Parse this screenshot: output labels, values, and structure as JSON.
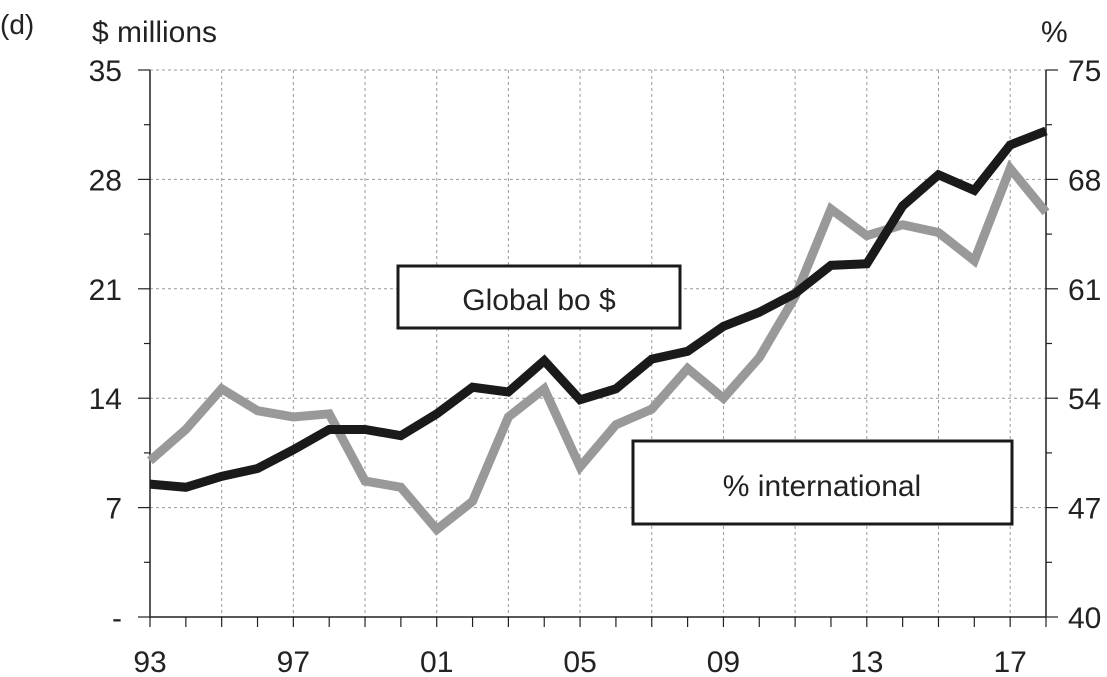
{
  "panel_label": "(d)",
  "chart_data": {
    "type": "line",
    "ylabel_left": "$ millions",
    "ylabel_right": "%",
    "x_tick_labels": [
      "93",
      "97",
      "01",
      "05",
      "09",
      "13",
      "17"
    ],
    "y_left_ticks": [
      "-",
      "7",
      "14",
      "21",
      "28",
      "35"
    ],
    "y_right_ticks": [
      "40",
      "47",
      "54",
      "61",
      "68",
      "75"
    ],
    "ylim_left": [
      0,
      35
    ],
    "ylim_right": [
      40,
      75
    ],
    "xlim": [
      1993,
      2018
    ],
    "grid": true,
    "x": [
      1993,
      1994,
      1995,
      1996,
      1997,
      1998,
      1999,
      2000,
      2001,
      2002,
      2003,
      2004,
      2005,
      2006,
      2007,
      2008,
      2009,
      2010,
      2011,
      2012,
      2013,
      2014,
      2015,
      2016,
      2017,
      2018
    ],
    "series": [
      {
        "name": "Global bo $",
        "axis": "left",
        "color": "#1a1a1a",
        "values": [
          8.5,
          8.3,
          9.0,
          9.5,
          10.7,
          12.0,
          12.0,
          11.6,
          13.0,
          14.7,
          14.4,
          16.4,
          13.9,
          14.6,
          16.5,
          17.0,
          18.6,
          19.5,
          20.7,
          22.5,
          22.6,
          26.3,
          28.3,
          27.3,
          30.2,
          31.1
        ]
      },
      {
        "name": "% international",
        "axis": "right",
        "color": "#999999",
        "values": [
          50.0,
          52.0,
          54.6,
          53.2,
          52.8,
          53.0,
          48.7,
          48.3,
          45.6,
          47.4,
          52.8,
          54.6,
          49.6,
          52.3,
          53.3,
          55.9,
          54.0,
          56.6,
          60.5,
          66.1,
          64.4,
          65.1,
          64.6,
          62.8,
          68.7,
          65.9
        ]
      }
    ],
    "annotations": [
      {
        "text": "Global bo $"
      },
      {
        "text": "% international"
      }
    ]
  }
}
